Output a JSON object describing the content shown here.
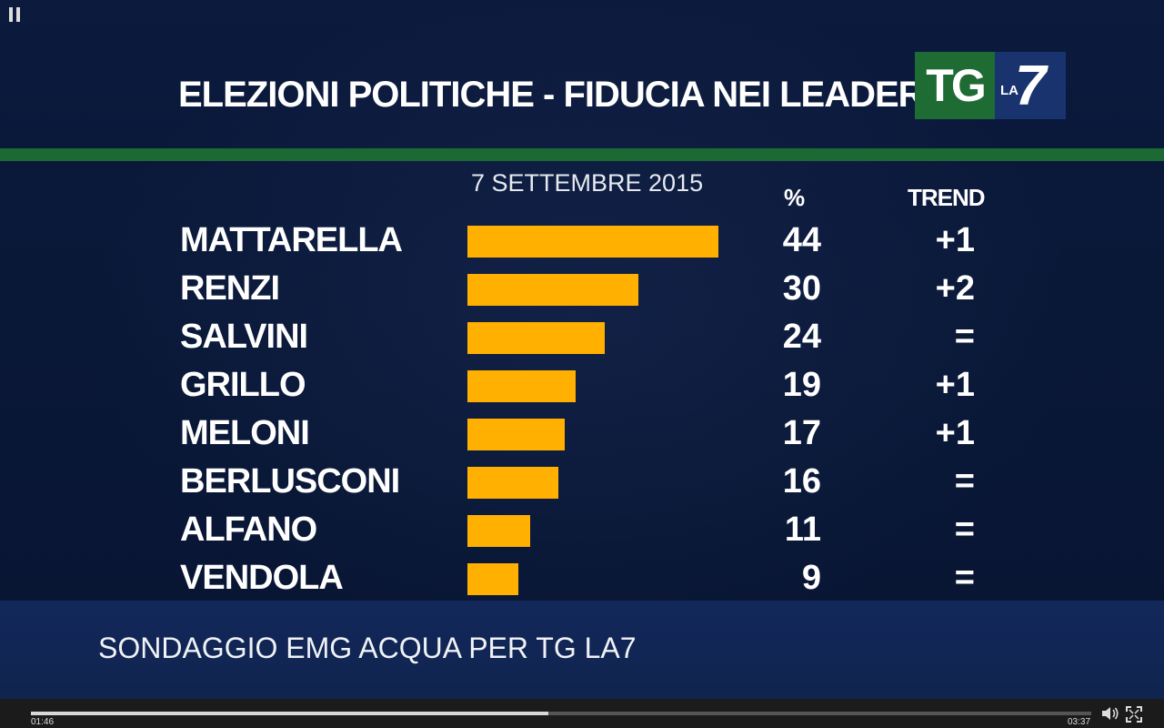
{
  "video": {
    "title": "ELEZIONI POLITICHE - FIDUCIA NEI LEADER",
    "logo": {
      "tg": "TG",
      "la": "LA",
      "seven": "7"
    },
    "date": "7 SETTEMBRE 2015",
    "headers": {
      "percent": "%",
      "trend": "TREND"
    },
    "source": "SONDAGGIO EMG ACQUA PER TG LA7",
    "colors": {
      "bar": "#ffb000",
      "green": "#1c6a33",
      "background": "#0b1a3d"
    }
  },
  "chart_data": {
    "type": "bar",
    "title": "ELEZIONI POLITICHE - FIDUCIA NEI LEADER",
    "categories": [
      "MATTARELLA",
      "RENZI",
      "SALVINI",
      "GRILLO",
      "MELONI",
      "BERLUSCONI",
      "ALFANO",
      "VENDOLA"
    ],
    "values": [
      44,
      30,
      24,
      19,
      17,
      16,
      11,
      9
    ],
    "trend": [
      "+1",
      "+2",
      "=",
      "+1",
      "+1",
      "=",
      "=",
      "="
    ],
    "xlim": [
      0,
      44
    ]
  },
  "player": {
    "current_time": "01:46",
    "total_time": "03:37",
    "progress": 0.488
  }
}
